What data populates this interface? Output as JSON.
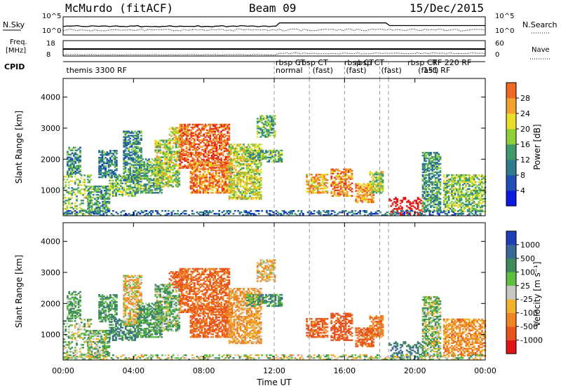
{
  "header": {
    "station": "McMurdo (fitACF)",
    "beam": "Beam 09",
    "date": "15/Dec/2015"
  },
  "status_panels": {
    "nsky_label": "N.Sky",
    "nsearch_label": "N.Search",
    "nsky_ticks": [
      "10^5",
      "10^0"
    ],
    "nsearch_ticks": [
      "10^5",
      "10^0"
    ],
    "freq_label": [
      "Freq.",
      "[MHz]"
    ],
    "freq_ticks": [
      "18",
      "8"
    ],
    "nave_label": "Nave",
    "nave_ticks": [
      "60",
      "0"
    ],
    "cpid_label": "CPID",
    "cpid_entries": [
      {
        "hour": 0.1,
        "text": "themis 3300 RF"
      },
      {
        "hour": 12.0,
        "text": "rbsp CT"
      },
      {
        "hour": 12.0,
        "text": "normal"
      },
      {
        "hour": 13.3,
        "text": "rbsp CT"
      },
      {
        "hour": 14.1,
        "text": "(fast)"
      },
      {
        "hour": 15.9,
        "text": "rbsp CT"
      },
      {
        "hour": 16.0,
        "text": "(fast)"
      },
      {
        "hour": 16.5,
        "text": "rbsp CT"
      },
      {
        "hour": 18.0,
        "text": "(fast)"
      },
      {
        "hour": 19.5,
        "text": "rbsp CT"
      },
      {
        "hour": 20.1,
        "text": "(fast)"
      },
      {
        "hour": 20.9,
        "text": "RF 220 RF"
      },
      {
        "hour": 20.4,
        "text": "151 RF"
      }
    ]
  },
  "chart_data": [
    {
      "type": "heatmap",
      "name": "power",
      "xlabel": "Time UT",
      "ylabel": "Slant Range [km]",
      "xlim": [
        0,
        24
      ],
      "ylim": [
        180,
        4600
      ],
      "x_ticks": [
        "00:00",
        "04:00",
        "08:00",
        "12:00",
        "16:00",
        "20:00",
        "00:00"
      ],
      "y_ticks": [
        1000,
        2000,
        3000,
        4000
      ],
      "colorbar": {
        "label": "Power [dB]",
        "ticks": [
          4,
          8,
          12,
          16,
          20,
          24,
          28
        ],
        "colors": [
          "#0a1adf",
          "#1f4fb5",
          "#2f7a8c",
          "#3e9a6a",
          "#8fcf3a",
          "#e9de28",
          "#f0a12e",
          "#ee6a23",
          "#e8361c",
          "#e01616"
        ]
      },
      "dashed_lines_hours": [
        12.0,
        14.0,
        16.0,
        18.0,
        18.5
      ]
    },
    {
      "type": "heatmap",
      "name": "velocity",
      "xlabel": "Time UT",
      "ylabel": "Slant Range [km]",
      "xlim": [
        0,
        24
      ],
      "ylim": [
        180,
        4600
      ],
      "x_ticks": [
        "00:00",
        "04:00",
        "08:00",
        "12:00",
        "16:00",
        "20:00",
        "00:00"
      ],
      "y_ticks": [
        1000,
        2000,
        3000,
        4000
      ],
      "colorbar": {
        "label": "Velocity [m s⁻¹]",
        "ticks": [
          1000,
          500,
          100,
          25,
          -25,
          -100,
          -500,
          -1000
        ],
        "colors": [
          "#1f3fb8",
          "#3a6a96",
          "#3e8a5c",
          "#5fbf3f",
          "#c6c8c4",
          "#f2b22c",
          "#ee8424",
          "#e8531e",
          "#e01616"
        ]
      },
      "dashed_lines_hours": [
        12.0,
        14.0,
        16.0,
        18.0,
        18.5
      ]
    }
  ],
  "echo_regions": [
    {
      "t0": 0.0,
      "t1": 1.6,
      "r0": 200,
      "r1": 1500,
      "p": 14,
      "v": 60
    },
    {
      "t0": 0.2,
      "t1": 1.0,
      "r0": 1500,
      "r1": 2400,
      "p": 10,
      "v": 120
    },
    {
      "t0": 1.4,
      "t1": 2.6,
      "r0": 250,
      "r1": 1150,
      "p": 11,
      "v": 70
    },
    {
      "t0": 2.0,
      "t1": 3.0,
      "r0": 1400,
      "r1": 2300,
      "p": 9,
      "v": 140
    },
    {
      "t0": 2.6,
      "t1": 4.2,
      "r0": 800,
      "r1": 1500,
      "p": 13,
      "v": 200
    },
    {
      "t0": 3.4,
      "t1": 4.4,
      "r0": 1300,
      "r1": 2900,
      "p": 10,
      "v": -60
    },
    {
      "t0": 4.2,
      "t1": 5.6,
      "r0": 900,
      "r1": 2000,
      "p": 12,
      "v": 150
    },
    {
      "t0": 5.2,
      "t1": 6.6,
      "r0": 1100,
      "r1": 2600,
      "p": 15,
      "v": 80
    },
    {
      "t0": 6.0,
      "t1": 7.0,
      "r0": 2500,
      "r1": 3000,
      "p": 17,
      "v": -300
    },
    {
      "t0": 6.6,
      "t1": 9.4,
      "r0": 1700,
      "r1": 3100,
      "p": 23,
      "v": -250
    },
    {
      "t0": 7.2,
      "t1": 9.6,
      "r0": 900,
      "r1": 1900,
      "p": 21,
      "v": -280
    },
    {
      "t0": 9.4,
      "t1": 11.2,
      "r0": 700,
      "r1": 2500,
      "p": 16,
      "v": -120
    },
    {
      "t0": 10.4,
      "t1": 12.4,
      "r0": 1900,
      "r1": 2300,
      "p": 13,
      "v": 160
    },
    {
      "t0": 11.0,
      "t1": 12.0,
      "r0": 2700,
      "r1": 3400,
      "p": 12,
      "v": -80
    },
    {
      "t0": 13.8,
      "t1": 15.0,
      "r0": 900,
      "r1": 1500,
      "p": 19,
      "v": -300
    },
    {
      "t0": 15.2,
      "t1": 16.4,
      "r0": 800,
      "r1": 1700,
      "p": 21,
      "v": -350
    },
    {
      "t0": 16.6,
      "t1": 17.6,
      "r0": 600,
      "r1": 1200,
      "p": 20,
      "v": -300
    },
    {
      "t0": 17.4,
      "t1": 18.2,
      "r0": 900,
      "r1": 1600,
      "p": 15,
      "v": -200
    },
    {
      "t0": 18.5,
      "t1": 20.4,
      "r0": 200,
      "r1": 750,
      "p": 29,
      "v": 250
    },
    {
      "t0": 20.4,
      "t1": 21.4,
      "r0": 300,
      "r1": 2200,
      "p": 11,
      "v": 60
    },
    {
      "t0": 21.6,
      "t1": 24.0,
      "r0": 300,
      "r1": 1500,
      "p": 14,
      "v": -150
    },
    {
      "t0": 0.0,
      "t1": 24.0,
      "r0": 180,
      "r1": 330,
      "p": 8,
      "v": 10
    }
  ]
}
